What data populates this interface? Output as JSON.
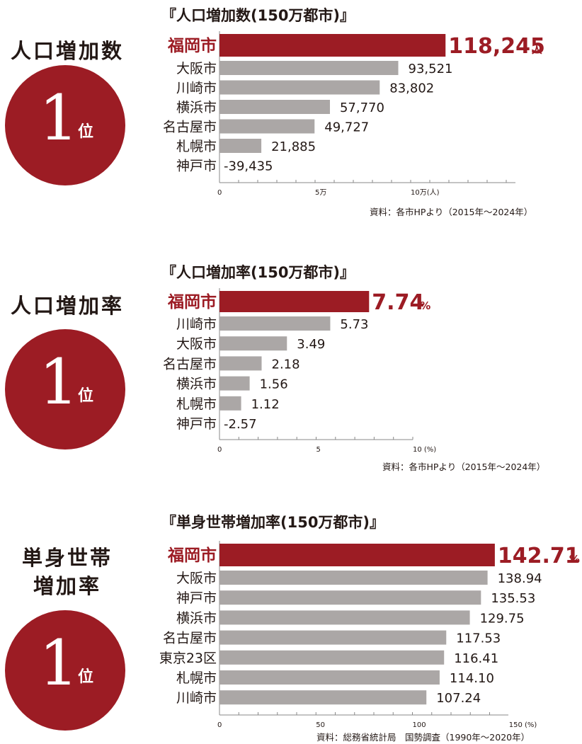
{
  "colors": {
    "accent": "#9c1c24",
    "bar": "#aba7a6",
    "text": "#231815"
  },
  "sections": [
    {
      "left_title_lines": [
        "人口増加数"
      ],
      "rank": {
        "number": "1",
        "suffix": "位"
      },
      "source": "資料：各市HPより（2015年～2024年）"
    },
    {
      "left_title_lines": [
        "人口増加率"
      ],
      "rank": {
        "number": "1",
        "suffix": "位"
      },
      "source": "資料：各市HPより（2015年～2024年）"
    },
    {
      "left_title_lines": [
        "単身世帯",
        "増加率"
      ],
      "rank": {
        "number": "1",
        "suffix": "位"
      },
      "source": "資料：総務省統計局　国勢調査（1990年～2020年）"
    }
  ],
  "chart_data": [
    {
      "type": "bar",
      "orientation": "horizontal",
      "title": "『人口増加数(150万都市)』",
      "categories": [
        "福岡市",
        "大阪市",
        "川崎市",
        "横浜市",
        "名古屋市",
        "札幌市",
        "神戸市"
      ],
      "values": [
        118245,
        93521,
        83802,
        57770,
        49727,
        21885,
        -39435
      ],
      "value_labels": [
        "118,245",
        "93,521",
        "83,802",
        "57,770",
        "49,727",
        "21,885",
        "-39,435"
      ],
      "highlight_unit": "人",
      "xlim": [
        0,
        150000
      ],
      "ticks": [
        0,
        50000,
        100000
      ],
      "tick_labels": [
        "0",
        "5万",
        "10万(人)"
      ],
      "highlight_index": 0
    },
    {
      "type": "bar",
      "orientation": "horizontal",
      "title": "『人口増加率(150万都市)』",
      "categories": [
        "福岡市",
        "川崎市",
        "大阪市",
        "名古屋市",
        "横浜市",
        "札幌市",
        "神戸市"
      ],
      "values": [
        7.74,
        5.73,
        3.49,
        2.18,
        1.56,
        1.12,
        -2.57
      ],
      "value_labels": [
        "7.74",
        "5.73",
        "3.49",
        "2.18",
        "1.56",
        "1.12",
        "-2.57"
      ],
      "highlight_unit": "%",
      "xlim": [
        0,
        10
      ],
      "ticks": [
        0,
        5,
        10
      ],
      "tick_labels": [
        "0",
        "5",
        "10 (%)"
      ],
      "highlight_index": 0
    },
    {
      "type": "bar",
      "orientation": "horizontal",
      "title": "『単身世帯増加率(150万都市)』",
      "categories": [
        "福岡市",
        "大阪市",
        "神戸市",
        "横浜市",
        "名古屋市",
        "東京23区",
        "札幌市",
        "川崎市"
      ],
      "values": [
        142.71,
        138.94,
        135.53,
        129.75,
        117.53,
        116.41,
        114.1,
        107.24
      ],
      "value_labels": [
        "142.71",
        "138.94",
        "135.53",
        "129.75",
        "117.53",
        "116.41",
        "114.10",
        "107.24"
      ],
      "highlight_unit": "%",
      "xlim": [
        0,
        150
      ],
      "ticks": [
        0,
        50,
        100,
        150
      ],
      "tick_labels": [
        "0",
        "50",
        "100",
        "150 (%)"
      ],
      "highlight_index": 0
    }
  ]
}
